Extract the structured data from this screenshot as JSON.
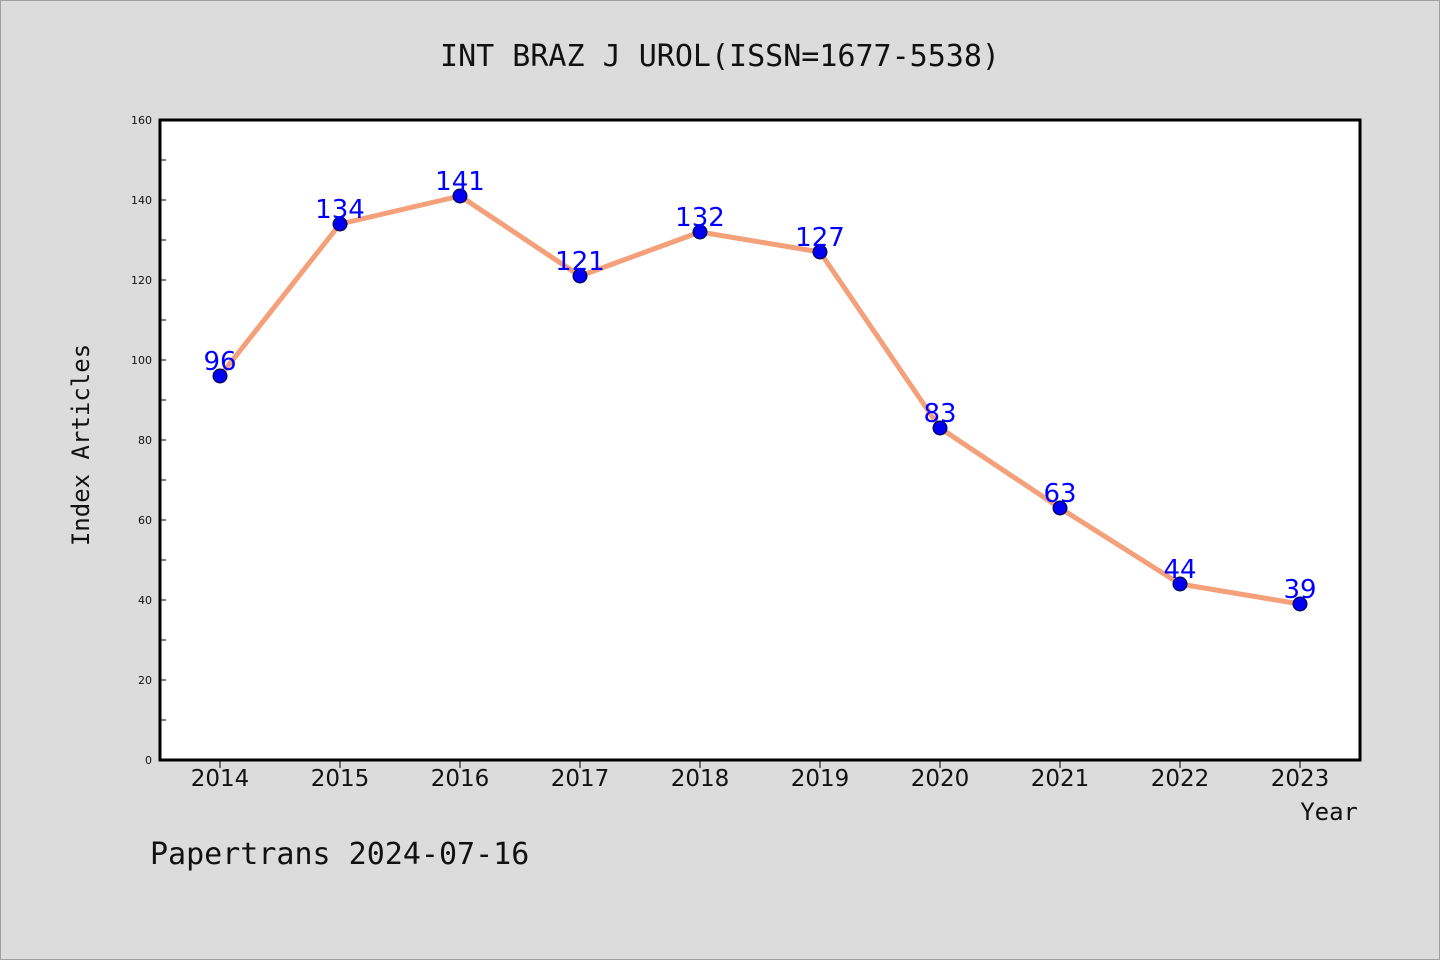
{
  "chart_data": {
    "type": "line",
    "title": "INT BRAZ J UROL(ISSN=1677-5538)",
    "xlabel": "Year",
    "ylabel": "Index Articles",
    "categories": [
      "2014",
      "2015",
      "2016",
      "2017",
      "2018",
      "2019",
      "2020",
      "2021",
      "2022",
      "2023"
    ],
    "series": [
      {
        "values": [
          96,
          134,
          141,
          121,
          132,
          127,
          83,
          63,
          44,
          39
        ],
        "line_color": "#f4a07a",
        "marker_color": "#0000ee"
      }
    ],
    "ylim": [
      0,
      160
    ],
    "yticks": [
      0,
      20,
      40,
      60,
      80,
      100,
      120,
      140,
      160
    ],
    "data_labels": [
      "96",
      "134",
      "141",
      "121",
      "132",
      "127",
      "83",
      "63",
      "44",
      "39"
    ],
    "label_color": "#0000ff",
    "grid": false,
    "legend": "none"
  },
  "footer": {
    "text": "Papertrans 2024-07-16"
  }
}
